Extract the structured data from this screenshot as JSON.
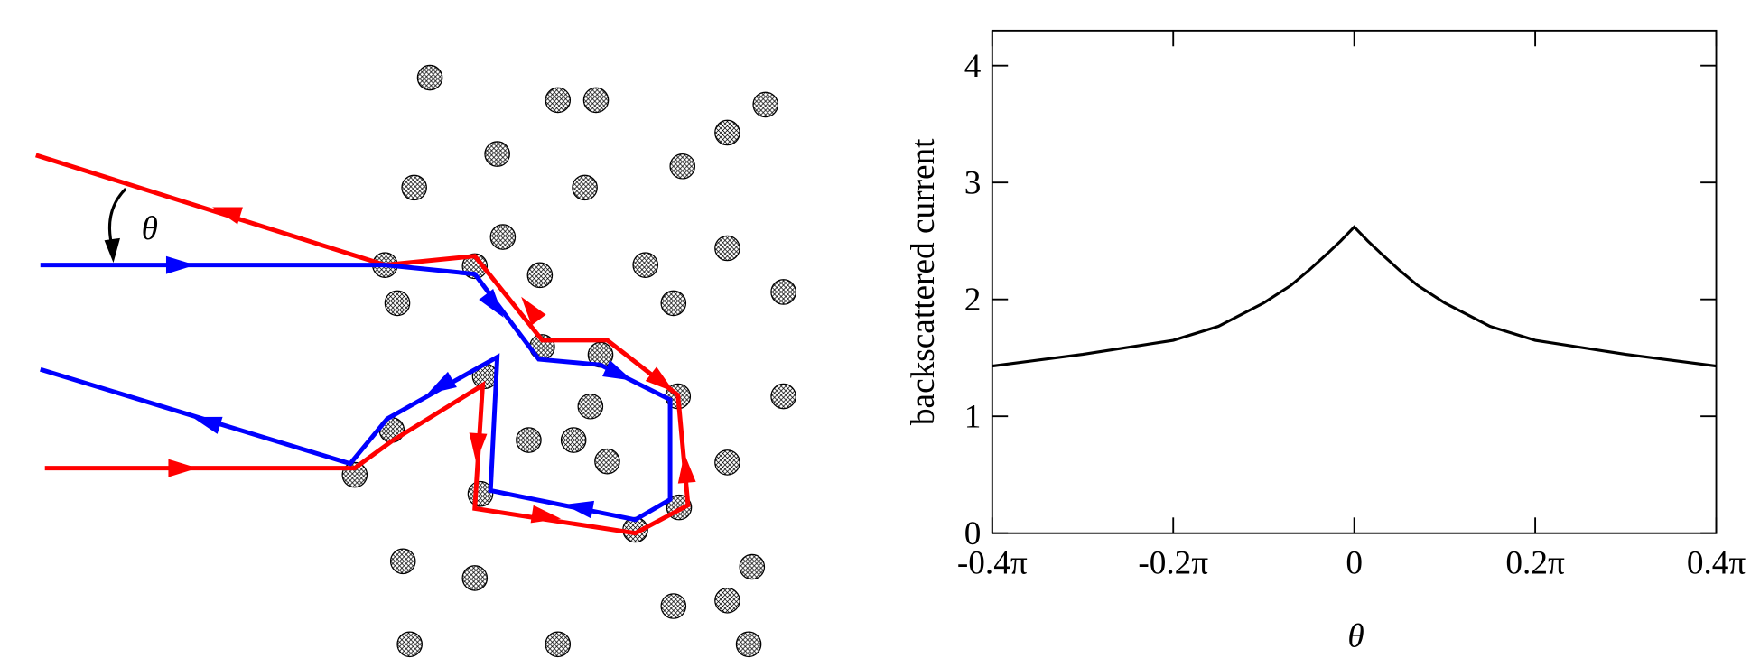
{
  "diagram": {
    "angle_label": "θ"
  },
  "chart_data": {
    "type": "line",
    "x_label": "θ",
    "y_label": "backscattered current",
    "xlim": [
      -0.4,
      0.4
    ],
    "ylim": [
      0,
      4.3
    ],
    "xticks": [
      {
        "value": -0.4,
        "label": "-0.4π"
      },
      {
        "value": -0.2,
        "label": "-0.2π"
      },
      0,
      {
        "value": 0.2,
        "label": "0.2π"
      },
      {
        "value": 0.4,
        "label": "0.4π"
      }
    ],
    "yticks": [
      0,
      1,
      2,
      3,
      4
    ],
    "series": [
      {
        "color": "#000000",
        "x": [
          -0.4,
          -0.3,
          -0.2,
          -0.15,
          -0.1,
          -0.07,
          -0.05,
          -0.03,
          -0.015,
          0,
          0.015,
          0.03,
          0.05,
          0.07,
          0.1,
          0.15,
          0.2,
          0.3,
          0.4
        ],
        "values": [
          1.43,
          1.53,
          1.65,
          1.77,
          1.97,
          2.12,
          2.25,
          2.39,
          2.5,
          2.62,
          2.5,
          2.39,
          2.25,
          2.12,
          1.97,
          1.77,
          1.65,
          1.53,
          1.43
        ]
      }
    ]
  }
}
